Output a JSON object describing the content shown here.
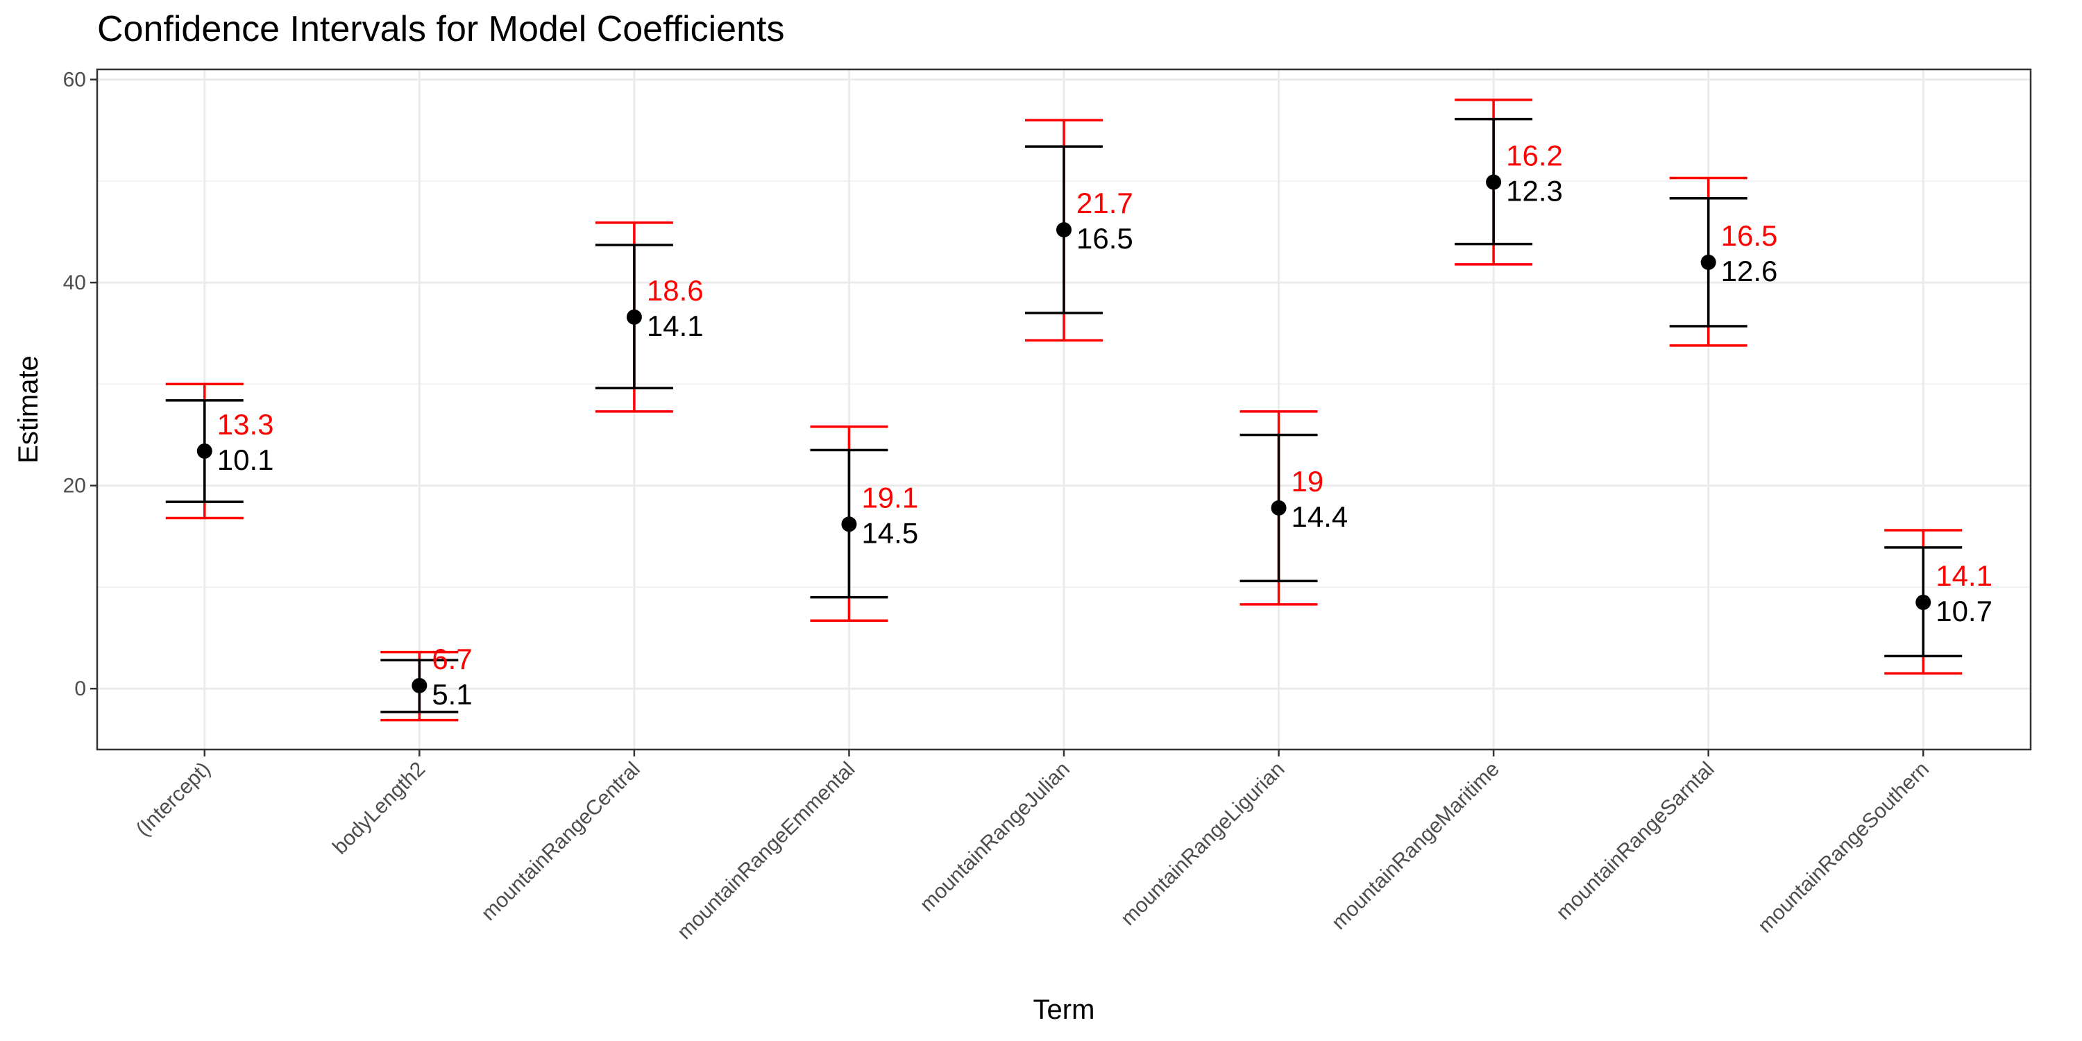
{
  "chart_data": {
    "type": "errorbar",
    "title": "Confidence Intervals for Model Coefficients",
    "xlabel": "Term",
    "ylabel": "Estimate",
    "ylim": [
      -6,
      61
    ],
    "yticks": [
      0,
      20,
      40,
      60
    ],
    "grid": true,
    "colors": {
      "inner": "#000000",
      "outer": "#ff0000"
    },
    "categories": [
      "(Intercept)",
      "bodyLength2",
      "mountainRangeCentral",
      "mountainRangeEmmental",
      "mountainRangeJulian",
      "mountainRangeLigurian",
      "mountainRangeMaritime",
      "mountainRangeSarntal",
      "mountainRangeSouthern"
    ],
    "estimates": [
      23.4,
      0.3,
      36.6,
      16.2,
      45.2,
      17.8,
      49.9,
      42.0,
      8.5
    ],
    "inner_interval": [
      [
        18.4,
        28.4
      ],
      [
        -2.3,
        2.8
      ],
      [
        29.6,
        43.7
      ],
      [
        9.0,
        23.5
      ],
      [
        37.0,
        53.4
      ],
      [
        10.6,
        25.0
      ],
      [
        43.8,
        56.1
      ],
      [
        35.7,
        48.3
      ],
      [
        3.2,
        13.9
      ]
    ],
    "outer_interval": [
      [
        16.8,
        30.0
      ],
      [
        -3.1,
        3.6
      ],
      [
        27.3,
        45.9
      ],
      [
        6.7,
        25.8
      ],
      [
        34.3,
        56.0
      ],
      [
        8.3,
        27.3
      ],
      [
        41.8,
        58.0
      ],
      [
        33.8,
        50.3
      ],
      [
        1.5,
        15.6
      ]
    ],
    "inner_labels": [
      "10.1",
      "5.1",
      "14.1",
      "14.5",
      "16.5",
      "14.4",
      "12.3",
      "12.6",
      "10.7"
    ],
    "outer_labels": [
      "13.3",
      "6.7",
      "18.6",
      "19.1",
      "21.7",
      "19",
      "16.2",
      "16.5",
      "14.1"
    ]
  }
}
